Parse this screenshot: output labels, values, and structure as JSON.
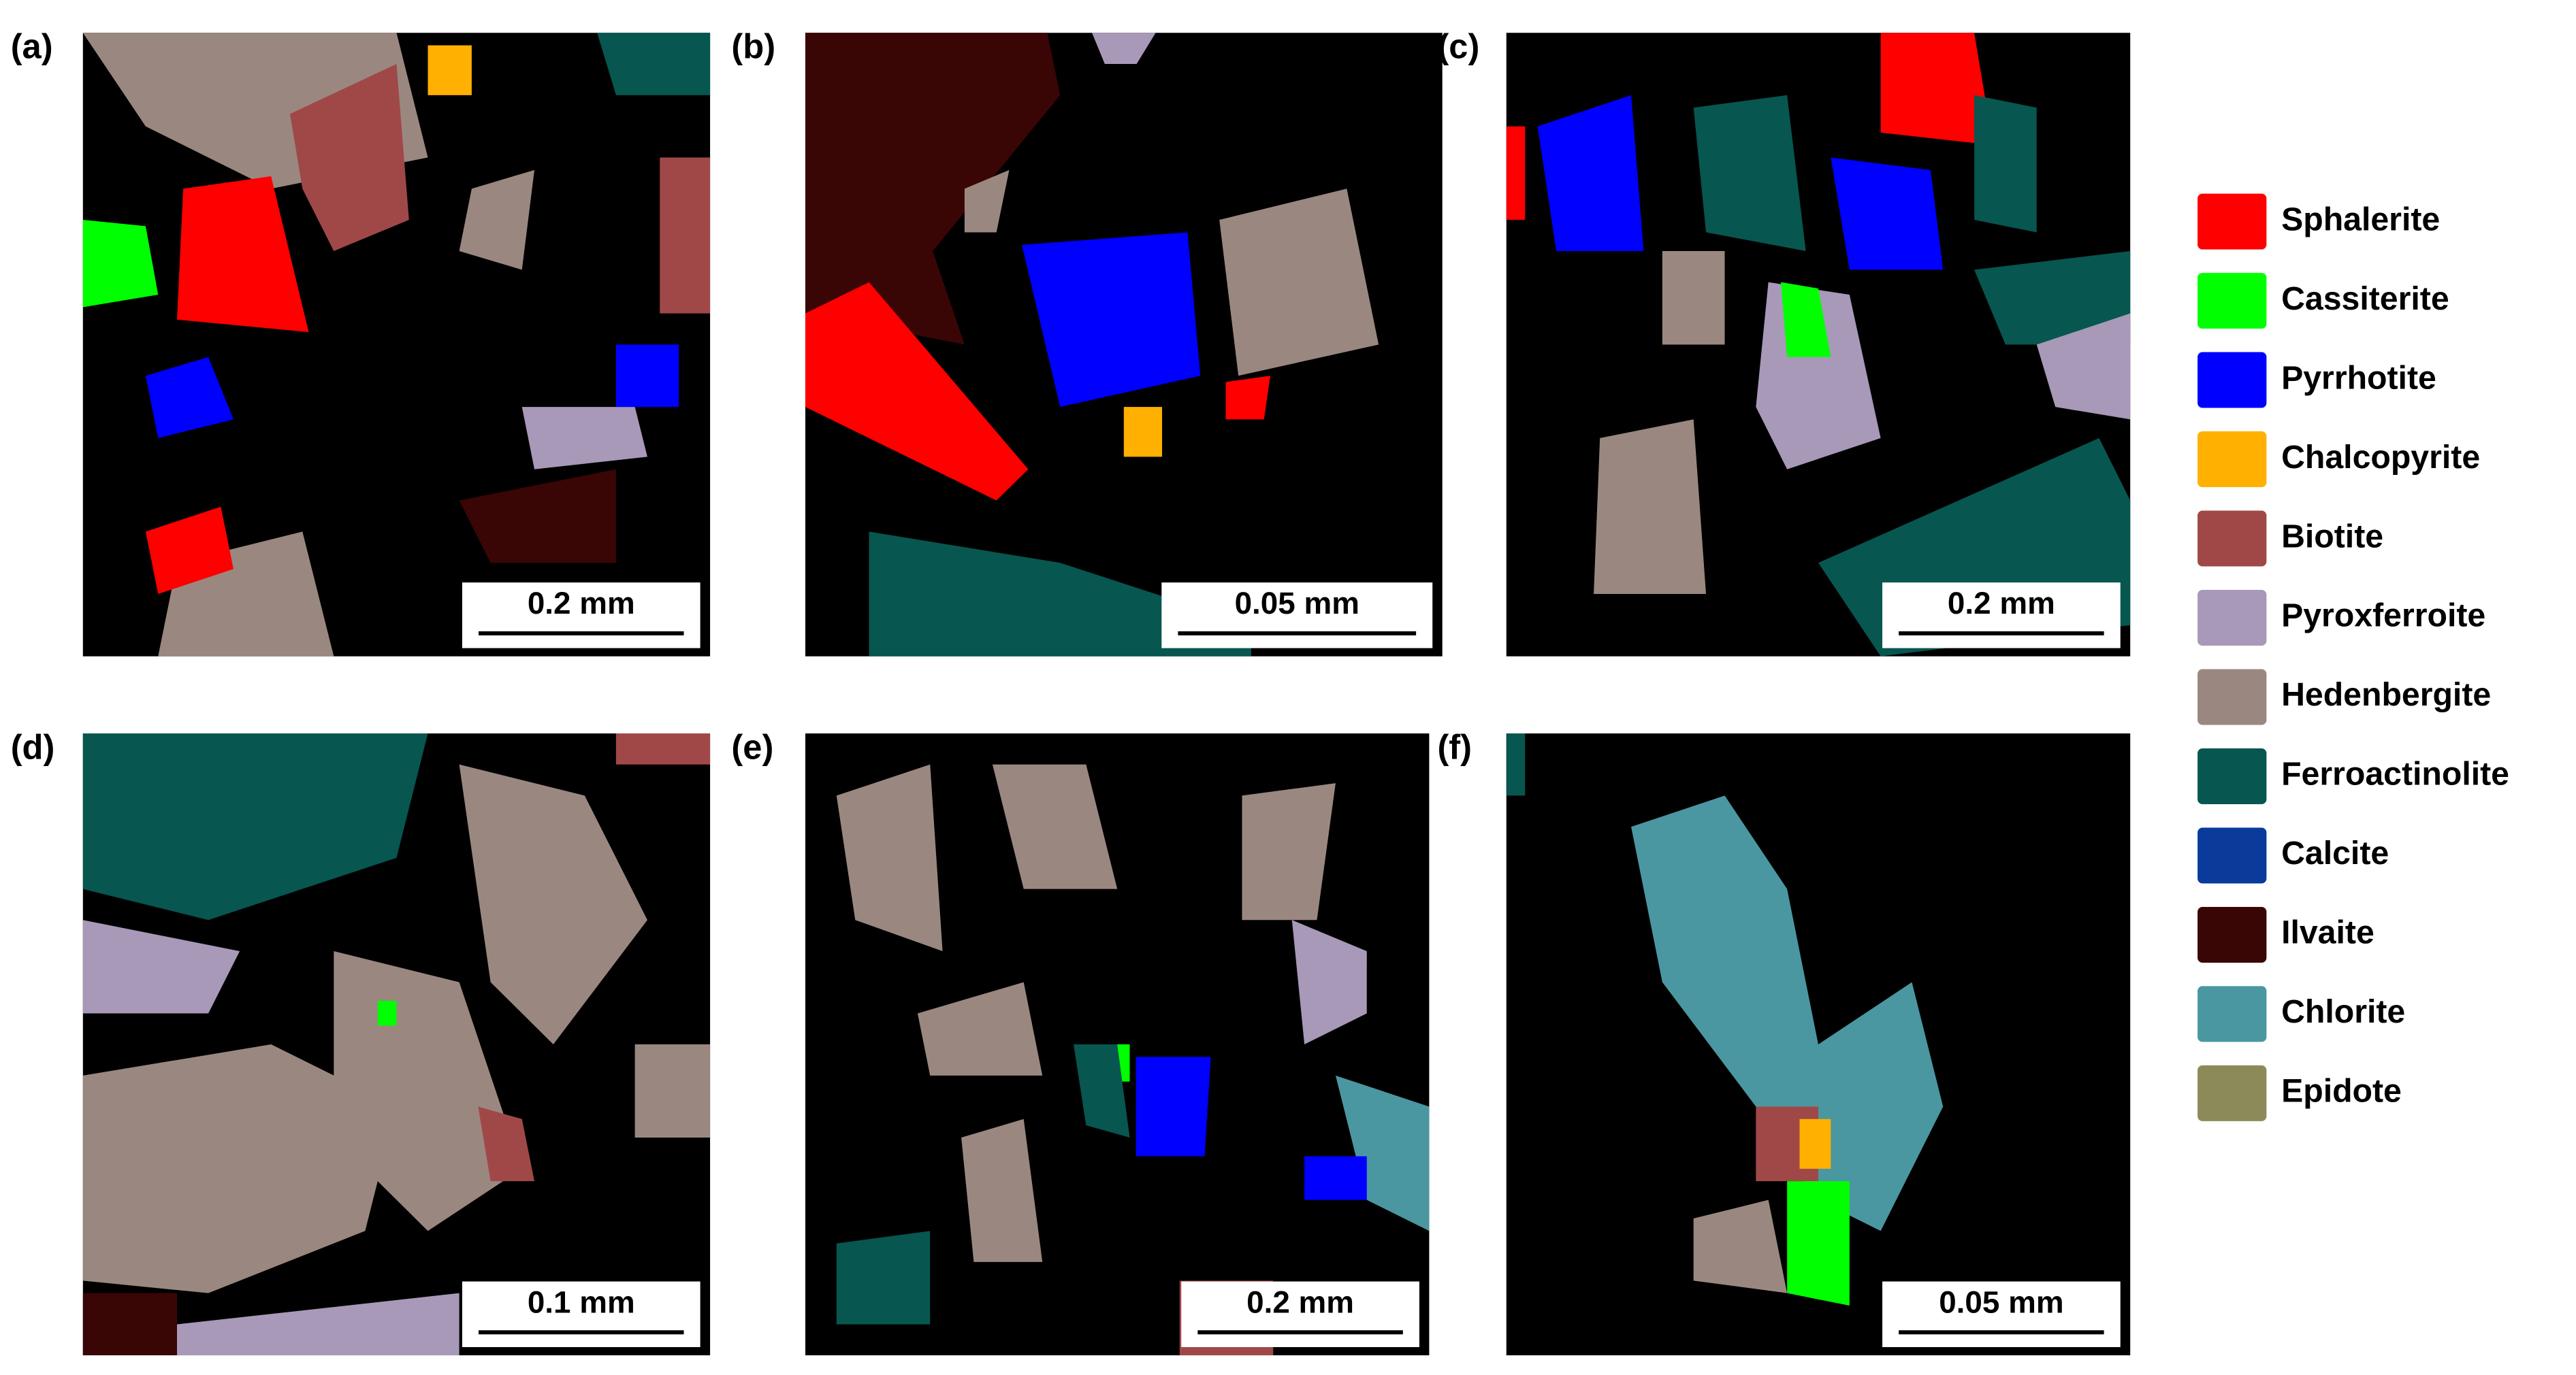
{
  "panels": [
    {
      "label": "(a)",
      "scale_bar": "0.2 mm"
    },
    {
      "label": "(b)",
      "scale_bar": "0.05 mm"
    },
    {
      "label": "(c)",
      "scale_bar": "0.2 mm"
    },
    {
      "label": "(d)",
      "scale_bar": "0.1 mm"
    },
    {
      "label": "(e)",
      "scale_bar": "0.2 mm"
    },
    {
      "label": "(f)",
      "scale_bar": "0.05 mm"
    }
  ],
  "legend": [
    {
      "name": "Sphalerite",
      "color": "#ff0000"
    },
    {
      "name": "Cassiterite",
      "color": "#00ff00"
    },
    {
      "name": "Pyrrhotite",
      "color": "#0000ff"
    },
    {
      "name": "Chalcopyrite",
      "color": "#ffb000"
    },
    {
      "name": "Biotite",
      "color": "#a04848"
    },
    {
      "name": "Pyroxferroite",
      "color": "#a899b8"
    },
    {
      "name": "Hedenbergite",
      "color": "#9a8880"
    },
    {
      "name": "Ferroactinolite",
      "color": "#075650"
    },
    {
      "name": "Calcite",
      "color": "#0a3a9a"
    },
    {
      "name": "Ilvaite",
      "color": "#3a0505"
    },
    {
      "name": "Chlorite",
      "color": "#4a97a2"
    },
    {
      "name": "Epidote",
      "color": "#8d8a5a"
    }
  ]
}
